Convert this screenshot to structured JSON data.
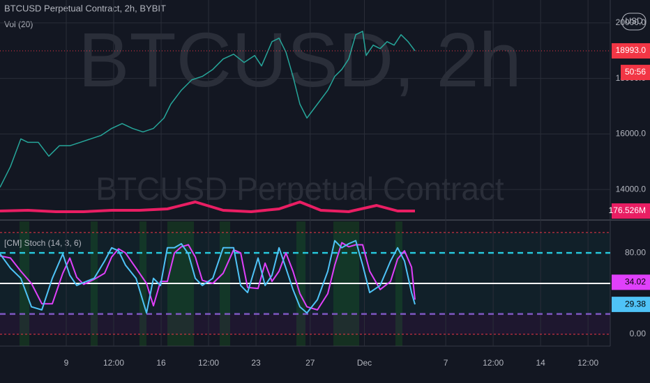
{
  "chart_data": [
    {
      "type": "line",
      "title": "BTCUSD Perpetual Contract, 2h, BYBIT",
      "watermark": "BTCUSD, 2h",
      "watermark_subtitle": "BTCUSD Perpetual Contract",
      "currency": "USD",
      "countdown": "50:56",
      "x": [
        -4.89,
        -4.12,
        -3.35,
        -2.83,
        -2.06,
        -1.29,
        -0.51,
        0.26,
        1.03,
        1.8,
        2.57,
        3.35,
        4.12,
        4.89,
        5.66,
        6.43,
        7.21,
        7.72,
        8.49,
        9.26,
        10.04,
        10.81,
        11.58,
        12.35,
        13.12,
        13.9,
        14.41,
        15.18,
        15.7,
        16.21,
        16.73,
        17.24,
        17.76,
        18.53,
        19.3,
        19.81,
        20.33,
        20.84,
        21.36,
        21.87,
        22.13,
        22.65,
        23.16,
        23.67,
        24.19,
        24.7,
        25.22,
        25.73
      ],
      "values": [
        14075,
        14825,
        15825,
        15700,
        15700,
        15200,
        15575,
        15575,
        15700,
        15825,
        15950,
        16200,
        16375,
        16200,
        16075,
        16200,
        16575,
        17075,
        17575,
        17950,
        18075,
        18325,
        18700,
        18875,
        18575,
        18825,
        18450,
        19325,
        19450,
        18950,
        18075,
        17075,
        16575,
        17075,
        17575,
        18075,
        18325,
        18700,
        19575,
        19700,
        18825,
        19200,
        19075,
        19325,
        19200,
        19575,
        19325,
        18993
      ],
      "value_labels": [
        null,
        null,
        null,
        null,
        null,
        null,
        null,
        null,
        null,
        null,
        null,
        null,
        null,
        null,
        null,
        null,
        null,
        null,
        null,
        null,
        null,
        null,
        null,
        null,
        null,
        null,
        null,
        null,
        null,
        null,
        null,
        null,
        null,
        null,
        null,
        null,
        null,
        null,
        null,
        null,
        null,
        null,
        null,
        null,
        null,
        null,
        null,
        "18993.0"
      ],
      "color": "#26a69a",
      "last_color": "#f23645",
      "ylim": [
        12925,
        20825
      ],
      "yticks": [
        {
          "value": 14000,
          "label": "14000.0"
        },
        {
          "value": 16000,
          "label": "16000.0"
        },
        {
          "value": 18000,
          "label": "18000.0"
        },
        {
          "value": 20000,
          "label": "20000.0"
        }
      ],
      "grid": true
    },
    {
      "type": "line",
      "title": "Vol (20)",
      "x": [
        -4.89,
        -2.83,
        -0.77,
        1.29,
        3.35,
        5.4,
        7.46,
        9.52,
        11.58,
        13.64,
        15.7,
        17.24,
        18.79,
        20.84,
        22.9,
        24.45,
        25.73
      ],
      "values": [
        177,
        192,
        162,
        162,
        192,
        192,
        221,
        369,
        192,
        162,
        221,
        369,
        192,
        162,
        295,
        177,
        176.526
      ],
      "value_labels": [
        null,
        null,
        null,
        null,
        null,
        null,
        null,
        null,
        null,
        null,
        null,
        null,
        null,
        null,
        null,
        null,
        "176.526M"
      ],
      "color": "#e91e63",
      "ylim": [
        0,
        1180
      ]
    },
    {
      "type": "line",
      "title": "[CM] Stoch (14, 3, 6)",
      "xlim": [
        -4.89,
        40.14
      ],
      "xticks": [
        {
          "value": 0,
          "label": "9"
        },
        {
          "value": 3.5,
          "label": "12:00"
        },
        {
          "value": 7,
          "label": "16"
        },
        {
          "value": 10.5,
          "label": "12:00"
        },
        {
          "value": 14,
          "label": "23"
        },
        {
          "value": 18,
          "label": "27"
        },
        {
          "value": 22,
          "label": "Dec"
        },
        {
          "value": 28,
          "label": "7"
        },
        {
          "value": 31.5,
          "label": "12:00"
        },
        {
          "value": 35,
          "label": "14"
        },
        {
          "value": 38.5,
          "label": "12:00"
        }
      ],
      "x": [
        -4.89,
        -4.12,
        -3.35,
        -2.57,
        -1.8,
        -1.03,
        -0.26,
        0.26,
        0.77,
        1.29,
        2.06,
        2.83,
        3.35,
        3.86,
        4.37,
        5.15,
        5.92,
        6.43,
        6.95,
        7.46,
        7.98,
        8.49,
        9.01,
        9.52,
        10.04,
        10.81,
        11.58,
        12.35,
        12.87,
        13.38,
        14.15,
        14.67,
        15.18,
        15.7,
        16.21,
        16.73,
        17.24,
        17.76,
        18.53,
        19.3,
        19.81,
        20.33,
        20.84,
        21.36,
        21.87,
        22.39,
        23.16,
        23.93,
        24.45,
        24.96,
        25.48,
        25.73
      ],
      "series": [
        {
          "color": "#e040fb",
          "values": [
            77,
            75,
            62,
            50,
            30,
            30,
            60,
            75,
            56,
            49,
            54,
            60,
            76,
            84,
            80,
            65,
            50,
            28,
            52,
            52,
            80,
            86,
            88,
            76,
            53,
            50,
            60,
            83,
            80,
            46,
            45,
            70,
            52,
            62,
            80,
            62,
            40,
            27,
            24,
            40,
            68,
            90,
            86,
            88,
            88,
            62,
            44,
            52,
            74,
            82,
            66,
            34.02
          ]
        },
        {
          "color": "#4fc3f7",
          "values": [
            79,
            65,
            55,
            27,
            24,
            55,
            79,
            58,
            48,
            51,
            55,
            72,
            85,
            82,
            68,
            55,
            21,
            55,
            48,
            85,
            85,
            89,
            79,
            55,
            48,
            55,
            85,
            85,
            48,
            41,
            75,
            48,
            58,
            85,
            65,
            44,
            27,
            21,
            34,
            62,
            92,
            85,
            89,
            92,
            68,
            41,
            48,
            72,
            85,
            72,
            41,
            29.38
          ]
        }
      ],
      "ylim": [
        -11.6,
        110.9
      ],
      "yticks": [
        {
          "value": 80,
          "label": "80.00"
        },
        {
          "value": 0,
          "label": "0.00"
        }
      ],
      "levels": [
        100,
        80,
        50,
        20,
        0
      ],
      "level_colors": [
        "#f23645",
        "#26c6da",
        "#ffffff",
        "#7e57c2",
        "#f23645"
      ],
      "level_styles": [
        "dotted",
        "dashed",
        "solid",
        "dashed",
        "dotted"
      ],
      "grid": true
    }
  ]
}
